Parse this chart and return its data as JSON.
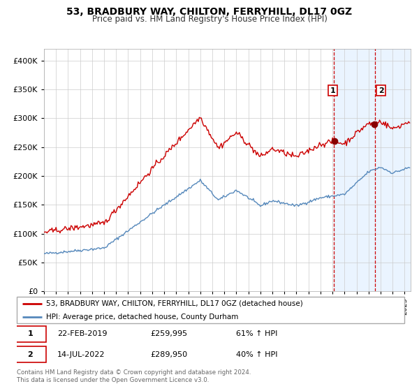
{
  "title": "53, BRADBURY WAY, CHILTON, FERRYHILL, DL17 0GZ",
  "subtitle": "Price paid vs. HM Land Registry's House Price Index (HPI)",
  "legend_line1": "53, BRADBURY WAY, CHILTON, FERRYHILL, DL17 0GZ (detached house)",
  "legend_line2": "HPI: Average price, detached house, County Durham",
  "transaction1_date": "22-FEB-2019",
  "transaction1_price": 259995,
  "transaction1_pct": "61% ↑ HPI",
  "transaction2_date": "14-JUL-2022",
  "transaction2_price": 289950,
  "transaction2_pct": "40% ↑ HPI",
  "footer": "Contains HM Land Registry data © Crown copyright and database right 2024.\nThis data is licensed under the Open Government Licence v3.0.",
  "red_color": "#cc0000",
  "blue_color": "#5588bb",
  "bg_shade_color": "#ddeeff",
  "vline1_x": 2019.13,
  "vline2_x": 2022.54,
  "ylim": [
    0,
    420000
  ],
  "xlim_start": 1995.0,
  "xlim_end": 2025.5
}
